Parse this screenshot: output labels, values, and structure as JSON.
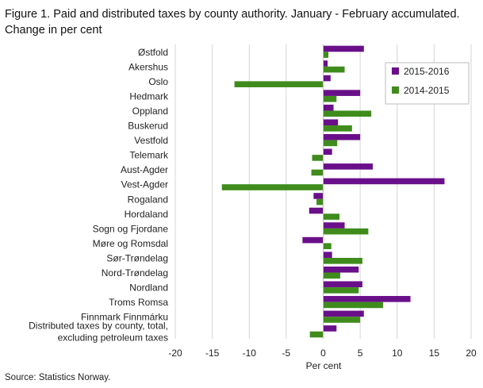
{
  "title": "Figure 1. Paid and distributed taxes by county authority. January - February accumulated. Change in per cent",
  "source": "Source: Statistics Norway.",
  "chart_data": {
    "type": "bar",
    "orientation": "horizontal",
    "title": "Figure 1. Paid and distributed taxes by county authority. January - February accumulated. Change in per cent",
    "xlabel": "Per cent",
    "ylabel": "",
    "xlim": [
      -20,
      20
    ],
    "xticks": [
      -20,
      -15,
      -10,
      -5,
      0,
      5,
      10,
      15,
      20
    ],
    "grid": "vertical",
    "legend_position": "top-right",
    "categories": [
      "Østfold",
      "Akershus",
      "Oslo",
      "Hedmark",
      "Oppland",
      "Buskerud",
      "Vestfold",
      "Telemark",
      "Aust-Agder",
      "Vest-Agder",
      "Rogaland",
      "Hordaland",
      "Sogn og Fjordane",
      "Møre og Romsdal",
      "Sør-Trøndelag",
      "Nord-Trøndelag",
      "Nordland",
      "Troms Romsa",
      "Finnmark Finnmárku",
      "Distributed taxes by county, total,\nexcluding petroleum taxes"
    ],
    "series": [
      {
        "name": "2015-2016",
        "color": "#6a0f8a",
        "values": [
          5.5,
          0.6,
          1.0,
          5.0,
          1.4,
          2.0,
          5.0,
          1.2,
          6.7,
          16.4,
          -1.3,
          -1.9,
          2.9,
          -2.8,
          1.2,
          4.8,
          5.3,
          11.8,
          5.5,
          1.8
        ]
      },
      {
        "name": "2014-2015",
        "color": "#3f8c1d",
        "values": [
          0.7,
          2.9,
          -12.0,
          1.8,
          6.5,
          3.9,
          1.9,
          -1.5,
          -1.6,
          -13.7,
          -0.9,
          2.2,
          6.1,
          1.1,
          5.3,
          2.3,
          4.8,
          8.1,
          5.0,
          -1.8
        ]
      }
    ]
  }
}
